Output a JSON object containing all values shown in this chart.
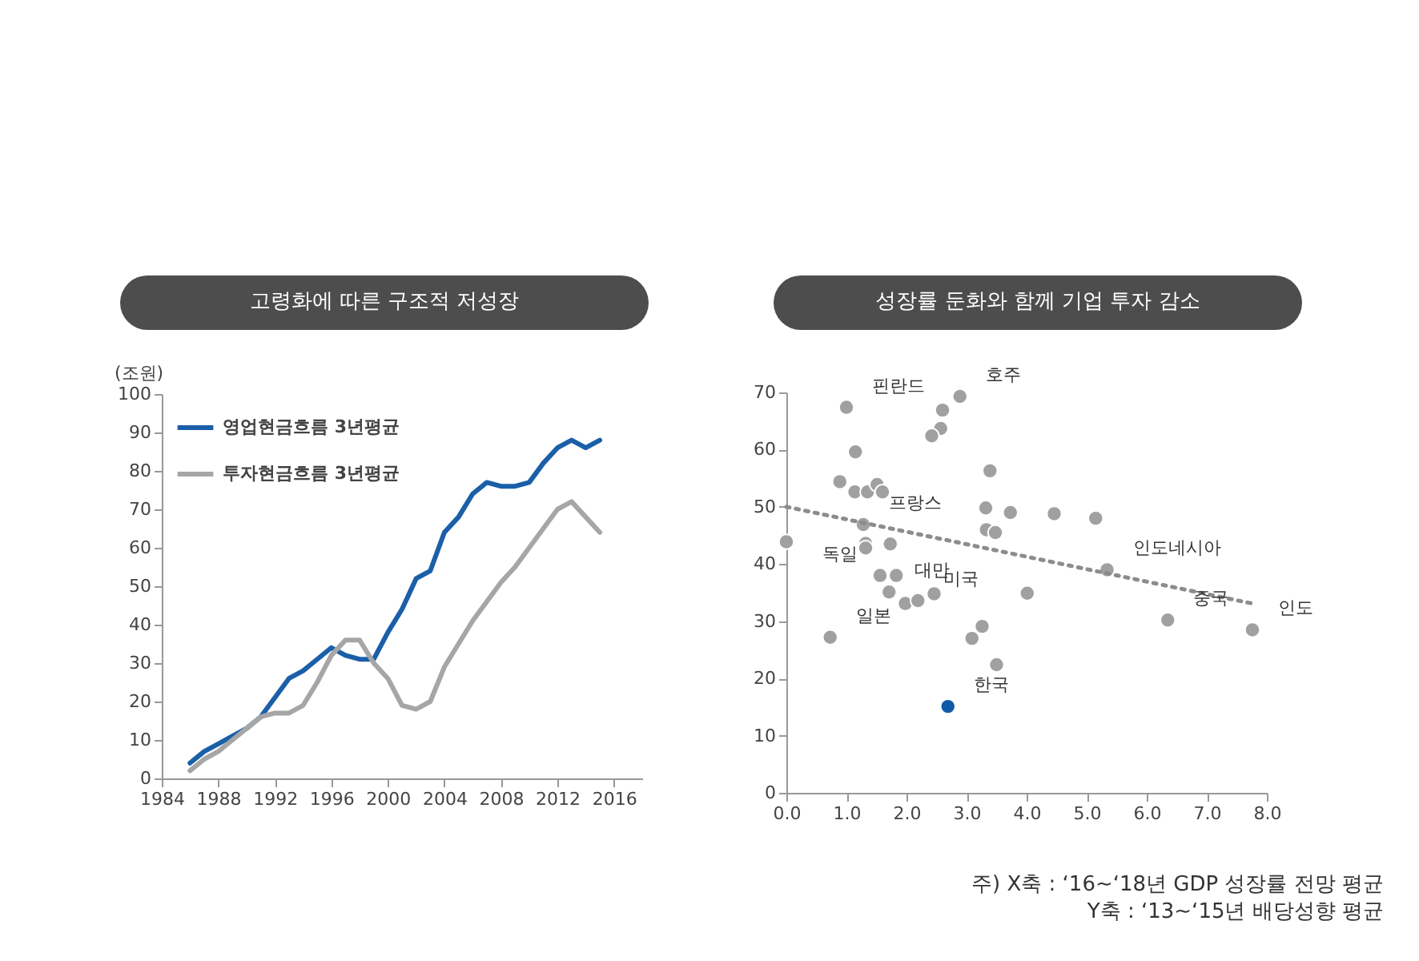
{
  "chart_data": [
    {
      "type": "line",
      "title": "고령화에 따른 구조적 저성장",
      "ylabel": "(조원)",
      "legend": "top left",
      "marker": "none",
      "line_style": "solid",
      "x": [
        1986,
        1987,
        1988,
        1989,
        1990,
        1991,
        1992,
        1993,
        1994,
        1995,
        1996,
        1997,
        1998,
        1999,
        2000,
        2001,
        2002,
        2003,
        2004,
        2005,
        2006,
        2007,
        2008,
        2009,
        2010,
        2011,
        2012,
        2013,
        2014,
        2015
      ],
      "series": [
        {
          "name": "영업현금흐름 3년평균",
          "color": "#1a5fa8",
          "values": [
            4,
            7,
            9,
            11,
            13,
            16,
            21,
            26,
            28,
            31,
            34,
            32,
            31,
            31,
            38,
            44,
            52,
            54,
            64,
            68,
            74,
            77,
            76,
            76,
            77,
            82,
            86,
            88,
            86,
            88
          ]
        },
        {
          "name": "투자현금흐름 3년평균",
          "color": "#a6a6a6",
          "values": [
            2,
            5,
            7,
            10,
            13,
            16,
            17,
            17,
            19,
            25,
            32,
            36,
            36,
            30,
            26,
            19,
            18,
            20,
            29,
            35,
            41,
            46,
            51,
            55,
            60,
            65,
            70,
            72,
            68,
            64
          ]
        }
      ],
      "xlim": [
        1984,
        2018
      ],
      "xticks": [
        1984,
        1988,
        1992,
        1996,
        2000,
        2004,
        2008,
        2012,
        2016
      ],
      "ylim": [
        0,
        100
      ],
      "yticks": [
        0,
        10,
        20,
        30,
        40,
        50,
        60,
        70,
        80,
        90,
        100
      ],
      "grid": false
    },
    {
      "type": "scatter",
      "title": "성장률 둔화와 함께 기업 투자 감소",
      "legend": false,
      "marker": "circle",
      "series": [
        {
          "color": "#a0a0a0",
          "x": [
            1.0,
            2.89,
            2.6,
            2.57,
            2.42,
            1.15,
            3.39,
            0.89,
            1.14,
            1.35,
            1.51,
            1.6,
            1.28,
            3.32,
            3.73,
            4.46,
            5.15,
            3.33,
            3.48,
            1.32,
            1.32,
            1.73,
            0.0,
            5.34,
            1.56,
            1.83,
            1.71,
            2.46,
            4.01,
            1.98,
            2.19,
            6.35,
            7.76,
            3.26,
            3.09,
            0.73,
            3.5
          ],
          "values": [
            67.4,
            69.3,
            66.9,
            63.7,
            62.4,
            59.6,
            56.3,
            54.4,
            52.6,
            52.6,
            53.9,
            52.6,
            46.9,
            49.8,
            49.0,
            48.8,
            48.0,
            46.0,
            45.5,
            43.6,
            42.8,
            43.5,
            43.9,
            39.0,
            38.0,
            38.0,
            35.1,
            34.8,
            34.9,
            33.1,
            33.6,
            30.2,
            28.5,
            29.1,
            27.0,
            27.2,
            22.4
          ]
        },
        {
          "color": "#0f5aa6",
          "x": [
            2.69
          ],
          "values": [
            15.1
          ]
        },
        {
          "type": "line",
          "line_style": "dotted",
          "marker": "none",
          "color": "#8c8c8c",
          "x": [
            0.0,
            7.8
          ],
          "values": [
            50,
            33
          ]
        }
      ],
      "annotations": [
        {
          "text": "핀란드",
          "x": 1.0,
          "y": 67.4
        },
        {
          "text": "호주",
          "x": 2.89,
          "y": 69.3
        },
        {
          "text": "프랑스",
          "x": 1.28,
          "y": 46.9
        },
        {
          "text": "인도네시아",
          "x": 5.34,
          "y": 39.0
        },
        {
          "text": "독일",
          "x": 1.56,
          "y": 38.0
        },
        {
          "text": "대만",
          "x": 1.71,
          "y": 35.1
        },
        {
          "text": "미국",
          "x": 2.19,
          "y": 33.6
        },
        {
          "text": "중국",
          "x": 6.35,
          "y": 30.2
        },
        {
          "text": "인도",
          "x": 7.76,
          "y": 28.5
        },
        {
          "text": "일본",
          "x": 0.73,
          "y": 27.2
        },
        {
          "text": "한국",
          "x": 2.69,
          "y": 15.1
        },
        "주) X축 : ‘16~‘18년 GDP 성장률 전망 평균",
        "Y축 : ‘13~‘15년 배당성향 평균"
      ],
      "xlim": [
        0,
        8
      ],
      "xticks": [
        {
          "value": 0,
          "label": "0.0"
        },
        {
          "value": 1,
          "label": "1.0"
        },
        {
          "value": 2,
          "label": "2.0"
        },
        {
          "value": 3,
          "label": "3.0"
        },
        {
          "value": 4,
          "label": "4.0"
        },
        {
          "value": 5,
          "label": "5.0"
        },
        {
          "value": 6,
          "label": "6.0"
        },
        {
          "value": 7,
          "label": "7.0"
        },
        {
          "value": 8,
          "label": "8.0"
        }
      ],
      "ylim": [
        0,
        70
      ],
      "yticks": [
        0,
        10,
        20,
        30,
        40,
        50,
        60,
        70
      ],
      "grid": false
    }
  ]
}
